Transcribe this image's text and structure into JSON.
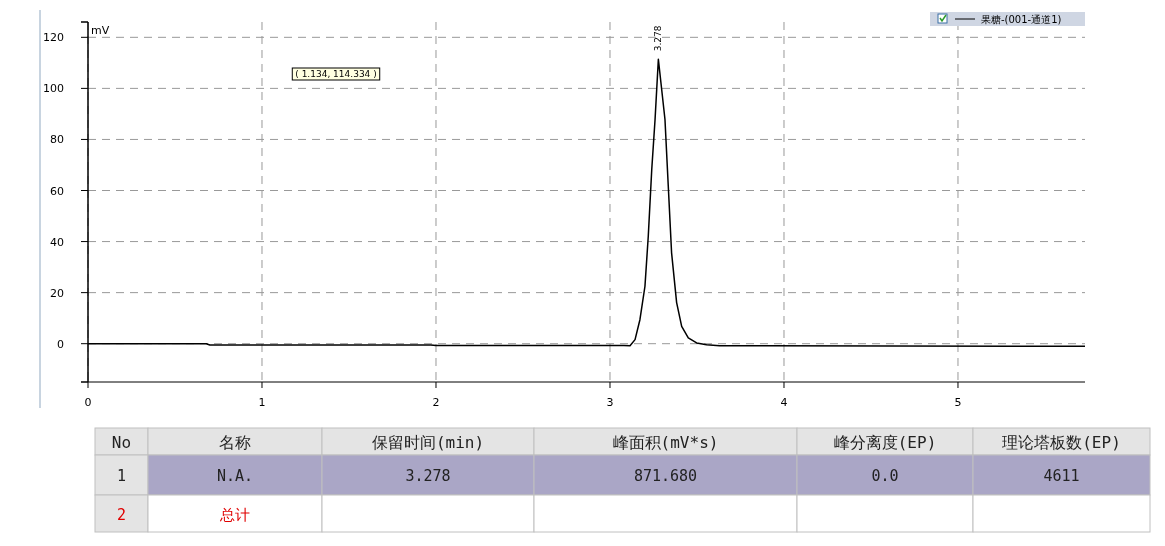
{
  "chart_data": [
    {
      "type": "line",
      "ylabel": "mV",
      "legend": "top right",
      "grid": true,
      "line_style": "solid",
      "xlim": [
        0,
        5.73
      ],
      "xticks": [
        0,
        1,
        2,
        3,
        4,
        5
      ],
      "ylim": [
        -15,
        126
      ],
      "yticks": [
        0,
        20,
        40,
        60,
        80,
        100,
        120
      ],
      "annotations": [
        "( 1.134,  114.334 )",
        {
          "text": "3.278",
          "x": 3.278,
          "y": 111.4
        }
      ],
      "series": [
        {
          "name": "果糖-(001-通道1)",
          "color": "#000000",
          "x": [
            0,
            0.68,
            0.7,
            1.97,
            2.0,
            3.08,
            3.115,
            3.144,
            3.172,
            3.201,
            3.22,
            3.24,
            3.259,
            3.278,
            3.316,
            3.335,
            3.354,
            3.383,
            3.412,
            3.45,
            3.498,
            3.555,
            3.63,
            5.73
          ],
          "values": [
            0,
            0,
            -0.5,
            -0.5,
            -0.7,
            -0.7,
            -0.8,
            1.6,
            9.4,
            22.5,
            42.1,
            68.2,
            87.8,
            111.4,
            87.8,
            61.7,
            35.6,
            16.1,
            6.8,
            2.3,
            0.3,
            -0.4,
            -0.8,
            -1
          ]
        }
      ]
    },
    {
      "type": "other",
      "annotations": [
        "No",
        "名称",
        "保留时间(min)",
        "峰面积(mV*s)",
        "峰分离度(EP)",
        "理论塔板数(EP)",
        "1",
        "N.A.",
        "3.278",
        "871.680",
        "0.0",
        "4611",
        "2",
        "总计"
      ]
    }
  ]
}
